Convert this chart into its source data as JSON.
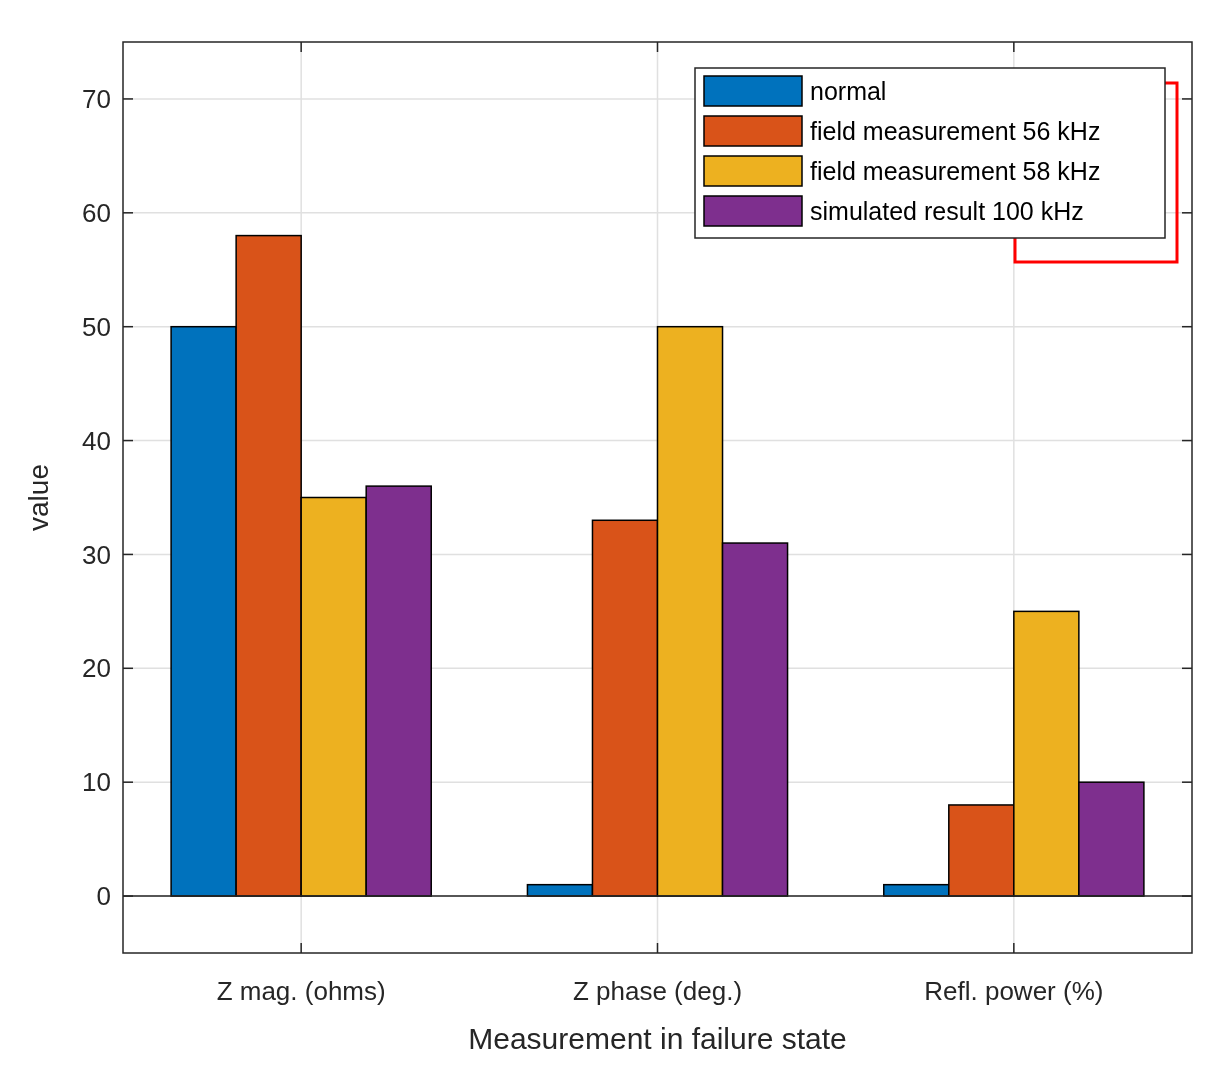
{
  "chart_data": {
    "type": "bar",
    "xlabel": "Measurement in failure state",
    "ylabel": "value",
    "categories": [
      "Z mag. (ohms)",
      "Z phase (deg.)",
      "Refl. power (%)"
    ],
    "series": [
      {
        "name": "normal",
        "color": "#0072bd",
        "values": [
          50,
          1,
          1
        ]
      },
      {
        "name": "field measurement 56 kHz",
        "color": "#d95319",
        "values": [
          58,
          33,
          8
        ]
      },
      {
        "name": "field measurement 58 kHz",
        "color": "#edb120",
        "values": [
          35,
          50,
          25
        ]
      },
      {
        "name": "simulated result 100 kHz",
        "color": "#7e2f8e",
        "values": [
          36,
          31,
          10
        ]
      }
    ],
    "ylim": [
      -5,
      75
    ],
    "yticks": [
      0,
      10,
      20,
      30,
      40,
      50,
      60,
      70
    ],
    "grid": true,
    "legend": "top right"
  }
}
